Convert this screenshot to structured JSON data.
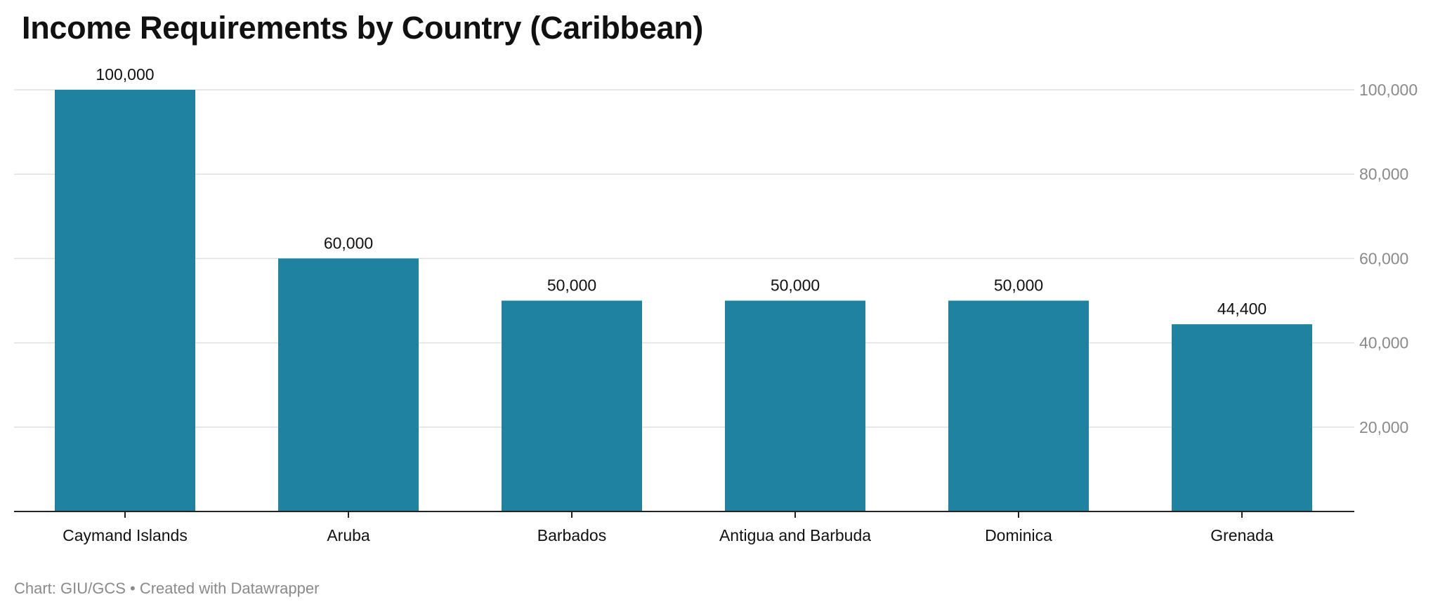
{
  "chart_data": {
    "type": "bar",
    "title": "Income Requirements by Country (Caribbean)",
    "categories": [
      "Caymand Islands",
      "Aruba",
      "Barbados",
      "Antigua and Barbuda",
      "Dominica",
      "Grenada"
    ],
    "values": [
      100000,
      60000,
      50000,
      50000,
      50000,
      44400
    ],
    "value_labels": [
      "100,000",
      "60,000",
      "50,000",
      "50,000",
      "50,000",
      "44,400"
    ],
    "xlabel": "",
    "ylabel": "",
    "ylim": [
      0,
      100000
    ],
    "y_ticks": [
      20000,
      40000,
      60000,
      80000,
      100000
    ],
    "y_tick_labels": [
      "20,000",
      "40,000",
      "60,000",
      "80,000",
      "100,000"
    ],
    "y_axis_side": "right",
    "grid": true,
    "bar_color": "#1f82a1"
  },
  "footer": {
    "credit": "Chart: GIU/GCS • Created with Datawrapper"
  },
  "colors": {
    "bar": "#1f82a1",
    "grid": "#e0e0e0",
    "axis": "#222222",
    "tick_label": "#8a8a8a",
    "text": "#111111"
  }
}
